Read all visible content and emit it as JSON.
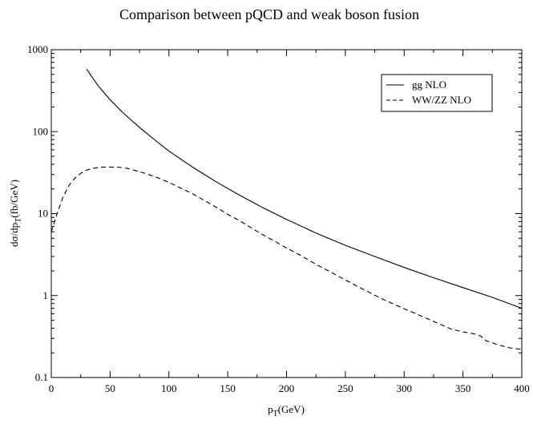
{
  "chart_data": {
    "type": "line",
    "title": "Comparison between pQCD and weak boson fusion",
    "xlabel": {
      "main": "p",
      "sub": "T",
      "rest": "(GeV)"
    },
    "ylabel": {
      "pre": "dσ/dp",
      "sub": "T",
      "rest": "(fb/GeV)"
    },
    "xlim": [
      0,
      400
    ],
    "ylim": [
      0.1,
      1000
    ],
    "yscale": "log",
    "grid": false,
    "legend_position": "top-right",
    "x_ticks": [
      0,
      50,
      100,
      150,
      200,
      250,
      300,
      350,
      400
    ],
    "x_tick_labels": [
      "0",
      "50",
      "100",
      "150",
      "200",
      "250",
      "300",
      "350",
      "400"
    ],
    "y_ticks": [
      0.1,
      1,
      10,
      100,
      1000
    ],
    "y_tick_labels": [
      "0.1",
      "1",
      "10",
      "100",
      "1000"
    ],
    "series": [
      {
        "name": "gg NLO",
        "style": "solid",
        "color": "#000000",
        "x": [
          30,
          40,
          50,
          60,
          70,
          80,
          90,
          100,
          120,
          140,
          160,
          180,
          200,
          225,
          250,
          275,
          300,
          325,
          350,
          375,
          400
        ],
        "y": [
          580,
          360,
          245,
          175,
          130,
          98,
          75,
          58,
          37,
          24.5,
          16.8,
          11.8,
          8.5,
          5.8,
          4.1,
          3.0,
          2.2,
          1.65,
          1.25,
          0.95,
          0.7
        ]
      },
      {
        "name": "WW/ZZ NLO",
        "style": "dashed",
        "color": "#000000",
        "x": [
          0,
          5,
          10,
          15,
          20,
          25,
          30,
          35,
          40,
          45,
          50,
          55,
          60,
          65,
          70,
          80,
          90,
          100,
          110,
          120,
          130,
          140,
          150,
          160,
          170,
          180,
          190,
          200,
          210,
          220,
          230,
          240,
          250,
          260,
          270,
          280,
          290,
          300,
          310,
          320,
          330,
          340,
          350,
          360,
          365,
          370,
          380,
          390,
          400
        ],
        "y": [
          6,
          10,
          16,
          22,
          27,
          31,
          34,
          35.5,
          36.5,
          37,
          37,
          37,
          36.5,
          35.5,
          34,
          31,
          27.5,
          24,
          20.5,
          17.5,
          14.5,
          12,
          9.8,
          8.2,
          6.7,
          5.5,
          4.6,
          3.8,
          3.2,
          2.65,
          2.2,
          1.85,
          1.55,
          1.3,
          1.1,
          0.93,
          0.8,
          0.69,
          0.6,
          0.52,
          0.45,
          0.39,
          0.36,
          0.34,
          0.32,
          0.28,
          0.25,
          0.23,
          0.22
        ]
      }
    ]
  }
}
